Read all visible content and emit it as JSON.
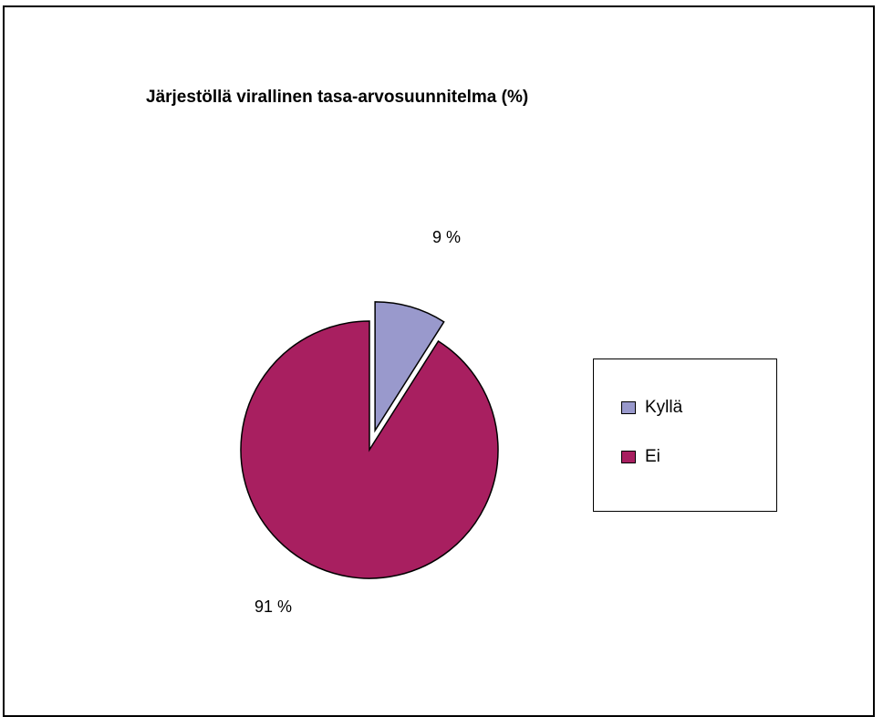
{
  "chart_data": {
    "type": "pie",
    "title": "Järjestöllä virallinen tasa-arvosuunnitelma (%)",
    "categories": [
      "Kyllä",
      "Ei"
    ],
    "values": [
      9,
      91
    ],
    "labels": [
      "9 %",
      "91 %"
    ],
    "colors": [
      "#9999cc",
      "#a81f60"
    ],
    "exploded": [
      "Kyllä"
    ],
    "legend": {
      "position": "right",
      "entries": [
        "Kyllä",
        "Ei"
      ]
    }
  }
}
